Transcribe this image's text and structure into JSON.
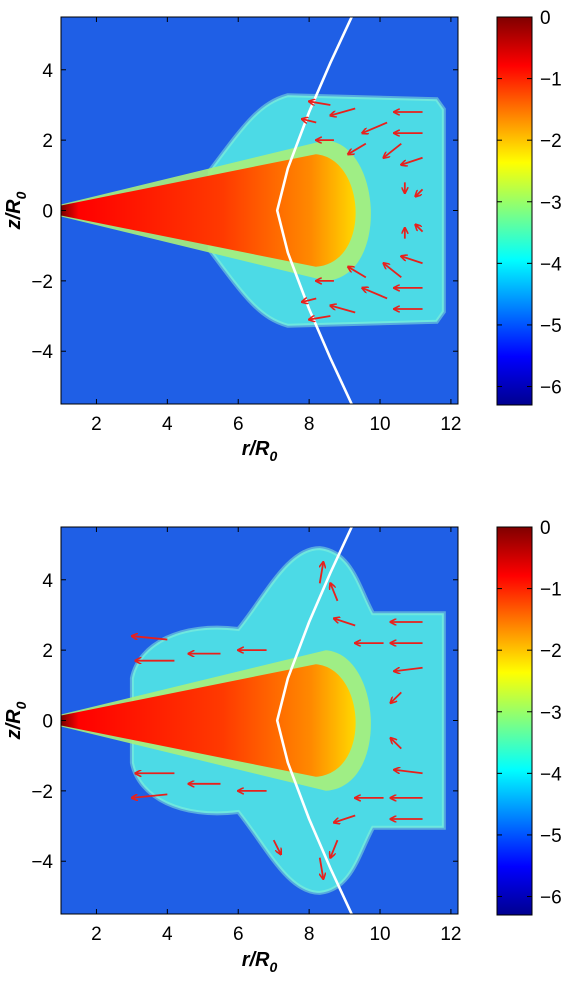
{
  "colormap": [
    "#00008f",
    "#0000ff",
    "#0080ff",
    "#00ffff",
    "#80ff80",
    "#ffff00",
    "#ff8000",
    "#ff0000",
    "#800000"
  ],
  "background_color": "#1f5fe6",
  "arrow_color": "#e8201c",
  "curve_color": "#ffffff",
  "chart_data": [
    {
      "type": "heatmap",
      "title": "",
      "xlabel": "r/R",
      "xlabel_sub": "0",
      "ylabel": "z/R",
      "ylabel_sub": "0",
      "xlim": [
        1,
        12.2
      ],
      "ylim": [
        -5.5,
        5.5
      ],
      "xticks": [
        2,
        4,
        6,
        8,
        10,
        12
      ],
      "yticks": [
        -4,
        -2,
        0,
        2,
        4
      ],
      "colorbar": {
        "ticks": [
          0,
          -1,
          -2,
          -3,
          -4,
          -5,
          -6
        ],
        "range": [
          -6.3,
          0
        ]
      },
      "disk": {
        "apex_r": 1,
        "tip_r": 9.6,
        "half_height_at_tip": 1.6
      },
      "envelope": {
        "r_start": 5.5,
        "r_end": 11.8,
        "half_height": 3.05
      },
      "boundary_curve": {
        "x": [
          9.2,
          8.6,
          8.0,
          7.4,
          7.1,
          7.4,
          8.0,
          8.6,
          9.2
        ],
        "y": [
          5.5,
          4.2,
          2.8,
          1.2,
          0,
          -1.2,
          -2.8,
          -4.2,
          -5.5
        ]
      },
      "vector_field": [
        {
          "x": 8.6,
          "y": 3.0,
          "dx": -0.6,
          "dy": 0.1
        },
        {
          "x": 9.3,
          "y": 2.9,
          "dx": -0.7,
          "dy": -0.2
        },
        {
          "x": 10.2,
          "y": 2.5,
          "dx": -0.7,
          "dy": -0.3
        },
        {
          "x": 11.2,
          "y": 2.8,
          "dx": -0.8,
          "dy": 0.0
        },
        {
          "x": 11.2,
          "y": 2.2,
          "dx": -0.8,
          "dy": 0.0
        },
        {
          "x": 11.2,
          "y": 1.5,
          "dx": -0.6,
          "dy": -0.2
        },
        {
          "x": 10.6,
          "y": 1.9,
          "dx": -0.5,
          "dy": -0.4
        },
        {
          "x": 9.6,
          "y": 1.9,
          "dx": -0.5,
          "dy": -0.3
        },
        {
          "x": 8.7,
          "y": 2.0,
          "dx": -0.5,
          "dy": 0.0
        },
        {
          "x": 8.2,
          "y": 2.5,
          "dx": -0.4,
          "dy": 0.1
        },
        {
          "x": 10.7,
          "y": 0.8,
          "dx": 0.0,
          "dy": -0.3
        },
        {
          "x": 11.2,
          "y": 0.6,
          "dx": -0.2,
          "dy": -0.2
        },
        {
          "x": 10.7,
          "y": -0.8,
          "dx": 0.0,
          "dy": 0.3
        },
        {
          "x": 11.2,
          "y": -0.6,
          "dx": -0.2,
          "dy": 0.2
        },
        {
          "x": 11.2,
          "y": -1.5,
          "dx": -0.6,
          "dy": 0.2
        },
        {
          "x": 10.6,
          "y": -1.9,
          "dx": -0.5,
          "dy": 0.4
        },
        {
          "x": 9.6,
          "y": -1.9,
          "dx": -0.5,
          "dy": 0.3
        },
        {
          "x": 8.7,
          "y": -2.0,
          "dx": -0.5,
          "dy": 0.0
        },
        {
          "x": 8.2,
          "y": -2.5,
          "dx": -0.4,
          "dy": -0.1
        },
        {
          "x": 8.6,
          "y": -3.0,
          "dx": -0.6,
          "dy": -0.1
        },
        {
          "x": 9.3,
          "y": -2.9,
          "dx": -0.7,
          "dy": 0.2
        },
        {
          "x": 10.2,
          "y": -2.5,
          "dx": -0.7,
          "dy": 0.3
        },
        {
          "x": 11.2,
          "y": -2.8,
          "dx": -0.8,
          "dy": 0.0
        },
        {
          "x": 11.2,
          "y": -2.2,
          "dx": -0.8,
          "dy": 0.0
        }
      ]
    },
    {
      "type": "heatmap",
      "title": "",
      "xlabel": "r/R",
      "xlabel_sub": "0",
      "ylabel": "z/R",
      "ylabel_sub": "0",
      "xlim": [
        1,
        12.2
      ],
      "ylim": [
        -5.5,
        5.5
      ],
      "xticks": [
        2,
        4,
        6,
        8,
        10,
        12
      ],
      "yticks": [
        -4,
        -2,
        0,
        2,
        4
      ],
      "colorbar": {
        "ticks": [
          0,
          -1,
          -2,
          -3,
          -4,
          -5,
          -6
        ],
        "range": [
          -6.3,
          0
        ]
      },
      "disk": {
        "apex_r": 1,
        "tip_r": 9.6,
        "half_height_at_tip": 1.6
      },
      "envelope": {
        "r_start": 3.5,
        "r_end": 11.8,
        "half_height": 3.05
      },
      "boundary_curve": {
        "x": [
          9.2,
          8.6,
          8.0,
          7.4,
          7.1,
          7.4,
          8.0,
          8.6,
          9.2
        ],
        "y": [
          5.5,
          4.2,
          2.8,
          1.2,
          0,
          -1.2,
          -2.8,
          -4.2,
          -5.5
        ]
      },
      "vector_field": [
        {
          "x": 4.0,
          "y": 2.3,
          "dx": -1.0,
          "dy": 0.1
        },
        {
          "x": 4.2,
          "y": 1.7,
          "dx": -1.1,
          "dy": 0.0
        },
        {
          "x": 5.5,
          "y": 1.9,
          "dx": -0.9,
          "dy": 0.0
        },
        {
          "x": 6.8,
          "y": 2.0,
          "dx": -0.8,
          "dy": 0.0
        },
        {
          "x": 8.3,
          "y": 3.9,
          "dx": 0.1,
          "dy": 0.6
        },
        {
          "x": 8.8,
          "y": 3.4,
          "dx": -0.2,
          "dy": 0.5
        },
        {
          "x": 9.3,
          "y": 2.7,
          "dx": -0.6,
          "dy": 0.2
        },
        {
          "x": 10.1,
          "y": 2.2,
          "dx": -0.8,
          "dy": 0.0
        },
        {
          "x": 11.2,
          "y": 2.8,
          "dx": -0.9,
          "dy": 0.0
        },
        {
          "x": 11.2,
          "y": 2.2,
          "dx": -0.9,
          "dy": 0.0
        },
        {
          "x": 11.2,
          "y": 1.5,
          "dx": -0.8,
          "dy": -0.1
        },
        {
          "x": 10.6,
          "y": 0.8,
          "dx": -0.3,
          "dy": -0.3
        },
        {
          "x": 10.6,
          "y": -0.8,
          "dx": -0.3,
          "dy": 0.3
        },
        {
          "x": 11.2,
          "y": -1.5,
          "dx": -0.8,
          "dy": 0.1
        },
        {
          "x": 11.2,
          "y": -2.2,
          "dx": -0.9,
          "dy": 0.0
        },
        {
          "x": 11.2,
          "y": -2.8,
          "dx": -0.9,
          "dy": 0.0
        },
        {
          "x": 10.1,
          "y": -2.2,
          "dx": -0.8,
          "dy": 0.0
        },
        {
          "x": 9.3,
          "y": -2.7,
          "dx": -0.6,
          "dy": -0.2
        },
        {
          "x": 8.8,
          "y": -3.4,
          "dx": -0.2,
          "dy": -0.5
        },
        {
          "x": 8.3,
          "y": -3.9,
          "dx": 0.1,
          "dy": -0.6
        },
        {
          "x": 6.8,
          "y": -2.0,
          "dx": -0.8,
          "dy": 0.0
        },
        {
          "x": 5.5,
          "y": -1.8,
          "dx": -0.9,
          "dy": 0.0
        },
        {
          "x": 4.2,
          "y": -1.5,
          "dx": -1.1,
          "dy": 0.0
        },
        {
          "x": 4.0,
          "y": -2.1,
          "dx": -1.0,
          "dy": -0.1
        },
        {
          "x": 7.0,
          "y": -3.4,
          "dx": 0.2,
          "dy": -0.4
        }
      ]
    }
  ]
}
